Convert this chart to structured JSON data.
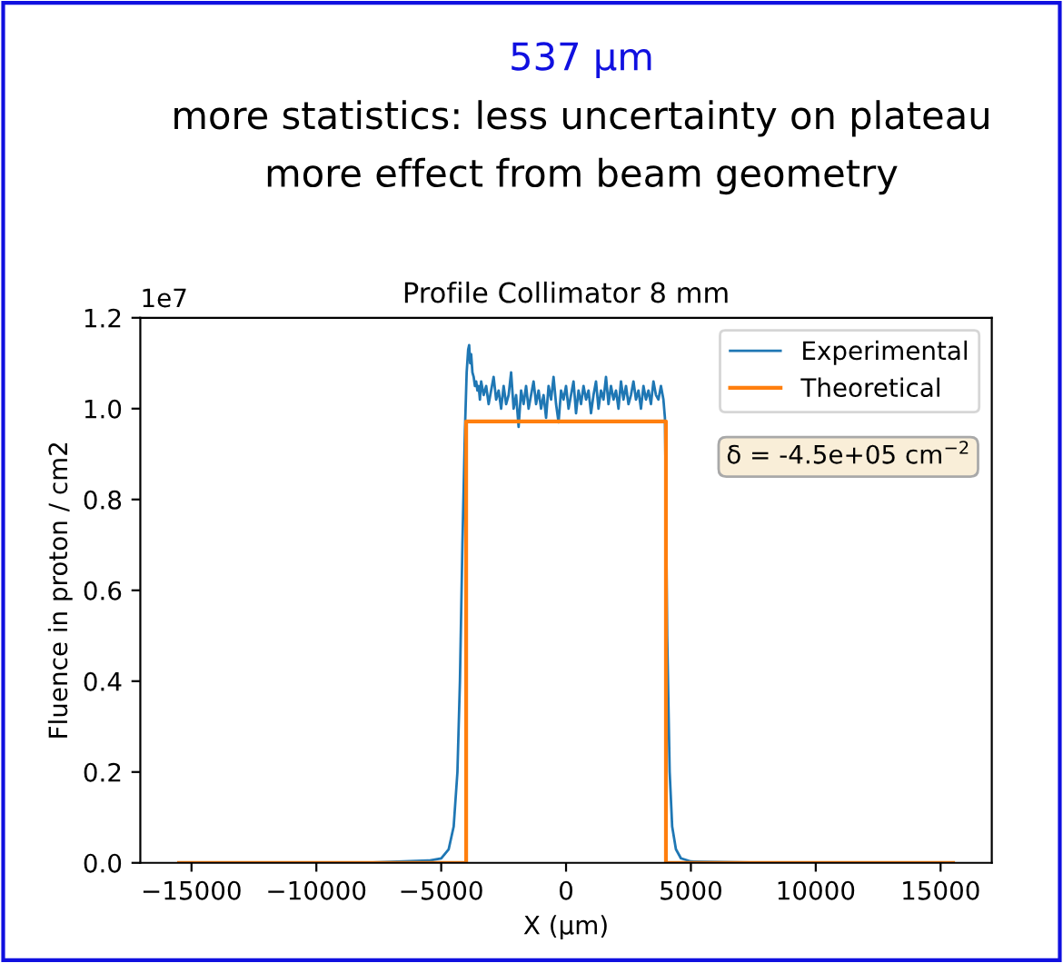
{
  "chart_data": {
    "type": "line",
    "title": "Profile Collimator 8 mm",
    "xlabel": "X (μm)",
    "ylabel": "Fluence in proton / cm2",
    "annotations": [
      "537 µm",
      "more statistics: less uncertainty on plateau",
      "more effect from beam geometry",
      "δ = -4.5e+05 cm$^{−2}$",
      "1e7"
    ],
    "xlim": [
      -17050,
      17050
    ],
    "xticks": [
      {
        "value": -15000,
        "label": "−15000"
      },
      {
        "value": -10000,
        "label": "−10000"
      },
      {
        "value": -5000,
        "label": "−5000"
      },
      0,
      5000,
      10000,
      15000
    ],
    "ylim": [
      0.0,
      1.2
    ],
    "yticks": [
      {
        "value": 0,
        "label": "0.0"
      },
      0.2,
      0.4,
      0.6,
      0.8,
      {
        "value": 1,
        "label": "1.0"
      },
      1.2
    ],
    "grid": false,
    "legend": "top right",
    "series": [
      {
        "name": "Experimental",
        "color": "#1f77b4",
        "x": [
          -15500,
          -8000,
          -5500,
          -5000,
          -4700,
          -4500,
          -4350,
          -4250,
          -4150,
          -4050,
          -3980,
          -3920,
          -3880,
          -3840,
          -3800,
          -3750,
          -3700,
          -3650,
          -3600,
          -3550,
          -3500,
          -3450,
          -3400,
          -3300,
          -3200,
          -3100,
          -3000,
          -2900,
          -2800,
          -2700,
          -2600,
          -2500,
          -2400,
          -2300,
          -2200,
          -2100,
          -2000,
          -1900,
          -1800,
          -1700,
          -1600,
          -1500,
          -1400,
          -1300,
          -1200,
          -1100,
          -1000,
          -900,
          -800,
          -700,
          -600,
          -500,
          -400,
          -300,
          -200,
          -100,
          0,
          100,
          200,
          300,
          400,
          500,
          600,
          700,
          800,
          900,
          1000,
          1100,
          1200,
          1300,
          1400,
          1500,
          1600,
          1700,
          1800,
          1900,
          2000,
          2100,
          2200,
          2300,
          2400,
          2500,
          2600,
          2700,
          2800,
          2900,
          3000,
          3100,
          3200,
          3300,
          3400,
          3500,
          3600,
          3700,
          3800,
          3900,
          3960,
          4000,
          4050,
          4150,
          4250,
          4400,
          4600,
          5000,
          8000,
          15500
        ],
        "values": [
          0,
          0,
          0.005,
          0.01,
          0.03,
          0.08,
          0.2,
          0.4,
          0.7,
          0.95,
          1.08,
          1.13,
          1.14,
          1.1,
          1.12,
          1.08,
          1.07,
          1.05,
          1.06,
          1.04,
          1.05,
          1.02,
          1.06,
          1.03,
          1.05,
          1.01,
          1.04,
          1.07,
          1.02,
          1.04,
          1.0,
          1.05,
          1.01,
          1.03,
          1.08,
          1.0,
          1.03,
          0.96,
          1.04,
          1.01,
          1.05,
          1.0,
          1.03,
          1.06,
          1.01,
          1.04,
          1.0,
          1.03,
          0.98,
          1.05,
          1.02,
          1.07,
          1.01,
          0.97,
          1.04,
          1.02,
          1.05,
          1.0,
          1.03,
          1.06,
          0.99,
          1.04,
          1.01,
          1.05,
          1.02,
          1.04,
          0.99,
          1.03,
          1.06,
          1.0,
          1.04,
          1.02,
          1.07,
          1.01,
          1.05,
          1.02,
          1.04,
          1.0,
          1.06,
          1.02,
          1.05,
          1.01,
          1.03,
          1.06,
          1.02,
          1.04,
          1.0,
          1.05,
          1.02,
          1.04,
          1.01,
          1.06,
          1.03,
          1.02,
          1.05,
          1.02,
          0.98,
          0.8,
          0.5,
          0.2,
          0.08,
          0.03,
          0.01,
          0.003,
          0,
          0
        ]
      },
      {
        "name": "Theoretical",
        "color": "#ff7f0e",
        "x": [
          -15500,
          -4000,
          -4000,
          4000,
          4000,
          15500
        ],
        "values": [
          0,
          0,
          0.972,
          0.972,
          0,
          0
        ]
      }
    ]
  }
}
